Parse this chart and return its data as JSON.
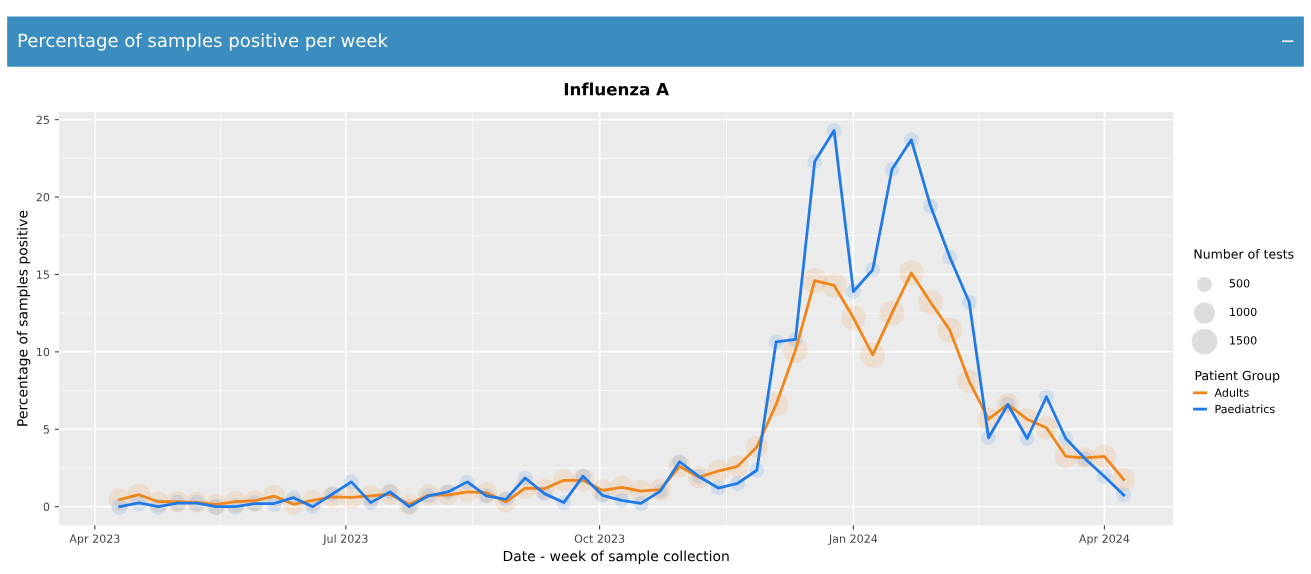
{
  "chart_data": {
    "type": "bubble",
    "title": "Percentage of samples positive per week",
    "subtitle": "Influenza A",
    "xlabel": "Date - week of sample collection",
    "ylabel": "Percentage of samples positive",
    "legend_title": "Patient Group",
    "annotations": [
      "−",
      "Number of tests"
    ],
    "x": [
      "2023-04-10",
      "2023-04-17",
      "2023-04-24",
      "2023-05-01",
      "2023-05-08",
      "2023-05-15",
      "2023-05-22",
      "2023-05-29",
      "2023-06-05",
      "2023-06-12",
      "2023-06-19",
      "2023-06-26",
      "2023-07-03",
      "2023-07-10",
      "2023-07-17",
      "2023-07-24",
      "2023-07-31",
      "2023-08-07",
      "2023-08-14",
      "2023-08-21",
      "2023-08-28",
      "2023-09-04",
      "2023-09-11",
      "2023-09-18",
      "2023-09-25",
      "2023-10-02",
      "2023-10-09",
      "2023-10-16",
      "2023-10-23",
      "2023-10-30",
      "2023-11-06",
      "2023-11-13",
      "2023-11-20",
      "2023-11-27",
      "2023-12-04",
      "2023-12-11",
      "2023-12-18",
      "2023-12-25",
      "2024-01-01",
      "2024-01-08",
      "2024-01-15",
      "2024-01-22",
      "2024-01-29",
      "2024-02-05",
      "2024-02-12",
      "2024-02-19",
      "2024-02-26",
      "2024-03-04",
      "2024-03-11",
      "2024-03-18",
      "2024-03-25",
      "2024-04-01",
      "2024-04-08"
    ],
    "series": [
      {
        "type": "line",
        "name": "Adults",
        "color": "#f0861a",
        "values": [
          0.45,
          0.77,
          0.32,
          0.32,
          0.28,
          0.15,
          0.32,
          0.38,
          0.68,
          0.15,
          0.4,
          0.63,
          0.6,
          0.7,
          0.8,
          0.15,
          0.75,
          0.75,
          0.95,
          0.9,
          0.3,
          1.2,
          1.15,
          1.7,
          1.7,
          1.05,
          1.25,
          1.0,
          1.1,
          2.6,
          1.9,
          2.3,
          2.6,
          3.85,
          6.6,
          10.1,
          14.6,
          14.3,
          12.2,
          9.8,
          12.5,
          15.1,
          13.2,
          11.4,
          8.1,
          5.65,
          6.6,
          5.65,
          5.1,
          3.25,
          3.15,
          3.25,
          1.75
        ]
      },
      {
        "type": "line",
        "name": "Paediatrics",
        "color": "#1f7ae8",
        "values": [
          0,
          0.24,
          0,
          0.22,
          0.22,
          0,
          0,
          0.2,
          0.2,
          0.58,
          0,
          0.8,
          1.6,
          0.26,
          0.95,
          0,
          0.7,
          0.95,
          1.6,
          0.7,
          0.47,
          1.85,
          0.84,
          0.26,
          1.97,
          0.73,
          0.4,
          0.21,
          1.0,
          2.9,
          1.95,
          1.2,
          1.5,
          2.35,
          10.65,
          10.8,
          22.3,
          24.3,
          13.9,
          15.3,
          21.8,
          23.7,
          19.4,
          16.1,
          13.2,
          4.45,
          6.6,
          4.4,
          7.1,
          4.4,
          3.1,
          1.95,
          0.75
        ]
      },
      {
        "color": "#f0861a",
        "values": [
          0.45,
          0.77,
          0.32,
          0.32,
          0.28,
          0.15,
          0.32,
          0.38,
          0.68,
          0.15,
          0.4,
          0.63,
          0.6,
          0.7,
          0.8,
          0.15,
          0.75,
          0.75,
          0.95,
          0.9,
          0.3,
          1.2,
          1.15,
          1.7,
          1.7,
          1.05,
          1.25,
          1.0,
          1.1,
          2.6,
          1.9,
          2.3,
          2.6,
          3.85,
          6.6,
          10.1,
          14.6,
          14.3,
          12.2,
          9.8,
          12.5,
          15.1,
          13.2,
          11.4,
          8.1,
          5.65,
          6.6,
          5.65,
          5.1,
          3.25,
          3.15,
          3.25,
          1.75
        ],
        "sizes": [
          1100,
          1200,
          1000,
          1000,
          1000,
          1000,
          1100,
          1000,
          1100,
          1000,
          1000,
          1000,
          1100,
          1000,
          1000,
          1000,
          1000,
          1000,
          1000,
          1000,
          1000,
          1100,
          1000,
          1100,
          1100,
          1100,
          1200,
          1100,
          1100,
          1100,
          1100,
          1100,
          1100,
          1100,
          1300,
          1400,
          1400,
          1400,
          1400,
          1400,
          1400,
          1400,
          1400,
          1400,
          1300,
          1200,
          1100,
          1100,
          1200,
          1200,
          1000,
          1200,
          1200
        ]
      },
      {
        "color": "#1f7ae8",
        "values": [
          0,
          0.24,
          0,
          0.22,
          0.22,
          0,
          0,
          0.2,
          0.2,
          0.58,
          0,
          0.8,
          1.6,
          0.26,
          0.95,
          0,
          0.7,
          0.95,
          1.6,
          0.7,
          0.47,
          1.85,
          0.84,
          0.26,
          1.97,
          0.73,
          0.4,
          0.21,
          1.0,
          2.9,
          1.95,
          1.2,
          1.5,
          2.35,
          10.65,
          10.8,
          22.3,
          24.3,
          13.9,
          15.3,
          21.8,
          23.7,
          19.4,
          16.1,
          13.2,
          4.45,
          6.6,
          4.4,
          7.1,
          4.4,
          3.1,
          1.95,
          0.75
        ],
        "sizes": [
          600,
          600,
          600,
          600,
          600,
          600,
          600,
          600,
          600,
          500,
          500,
          500,
          500,
          500,
          500,
          500,
          500,
          500,
          500,
          500,
          500,
          500,
          500,
          500,
          500,
          500,
          500,
          500,
          500,
          500,
          500,
          500,
          500,
          500,
          500,
          500,
          500,
          500,
          500,
          500,
          500,
          500,
          500,
          500,
          500,
          500,
          500,
          500,
          500,
          500,
          500,
          500,
          500
        ]
      }
    ],
    "size_legend": [
      500,
      1000,
      1500
    ],
    "xlim": [
      "2023-03-19",
      "2024-04-26"
    ],
    "xticks": [
      {
        "value": "2023-04-01",
        "label": "Apr 2023"
      },
      {
        "value": "2023-07-01",
        "label": "Jul 2023"
      },
      {
        "value": "2023-10-01",
        "label": "Oct 2023"
      },
      {
        "value": "2024-01-01",
        "label": "Jan 2024"
      },
      {
        "value": "2024-04-01",
        "label": "Apr 2024"
      }
    ],
    "ylim": [
      -1.2,
      25.5
    ],
    "yticks": [
      0,
      5,
      10,
      15,
      20,
      25
    ],
    "grid": true,
    "legend": "right"
  }
}
